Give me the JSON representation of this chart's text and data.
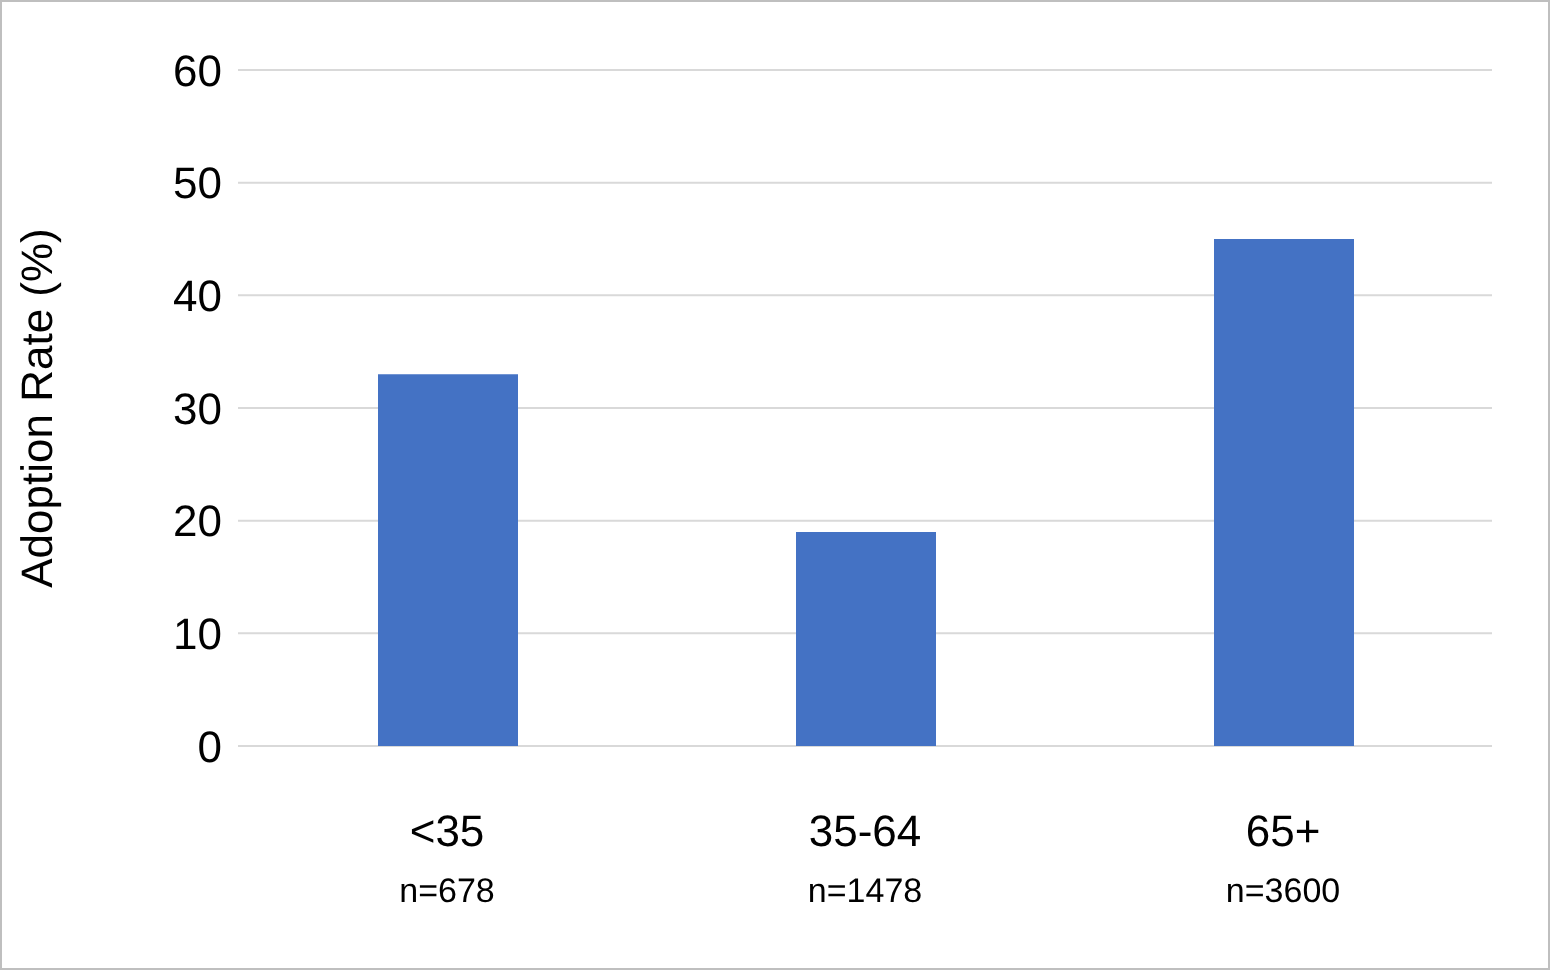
{
  "chart_data": {
    "type": "bar",
    "ylabel": "Adoption Rate (%)",
    "categories": [
      "<35\nn=678",
      "35-64\nn=1478",
      "65+\nn=3600"
    ],
    "values": [
      33,
      19,
      45
    ],
    "color": "#4472c4",
    "ylim": [
      0,
      60
    ],
    "yticks": [
      0,
      10,
      20,
      30,
      40,
      50,
      60
    ],
    "grid": "y"
  }
}
